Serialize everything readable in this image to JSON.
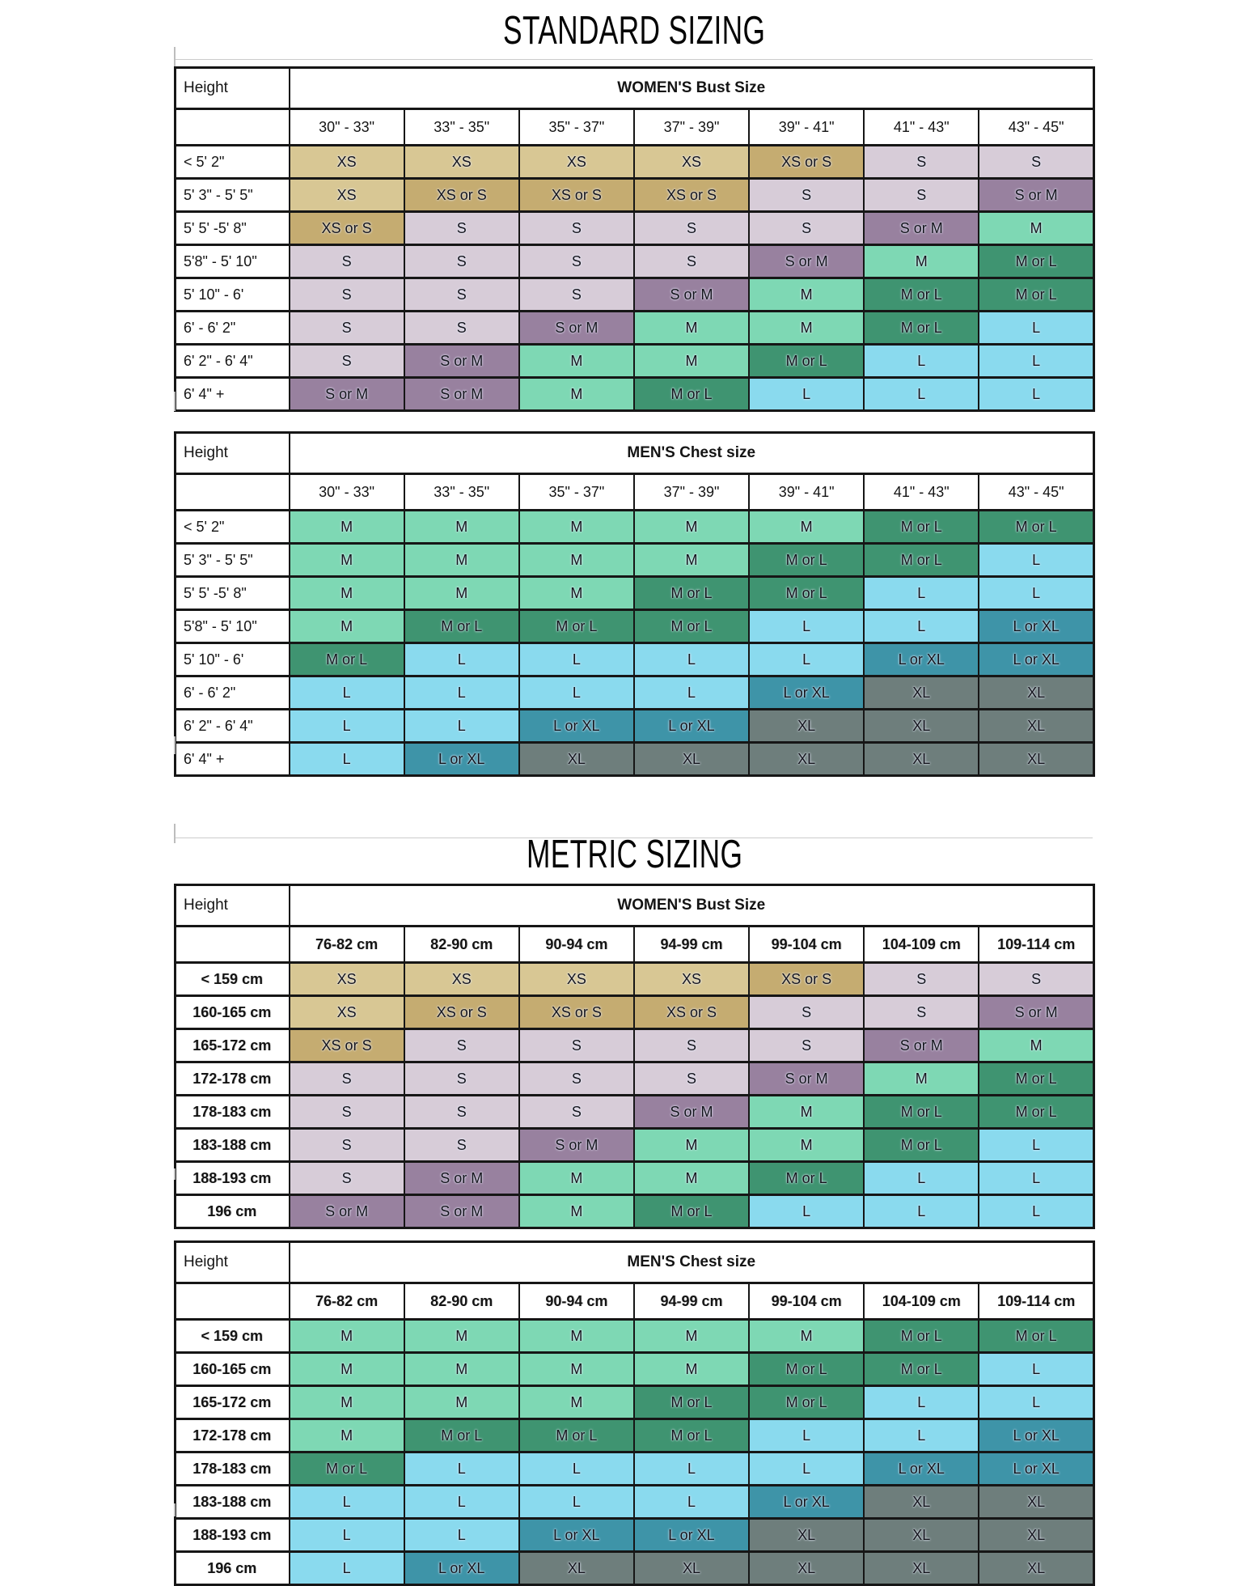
{
  "titles": {
    "standard": "STANDARD SIZING",
    "metric": "METRIC SIZING"
  },
  "size_colors": {
    "XS": "#d8c794",
    "XS or S": "#c5ac71",
    "S": "#d7ccd8",
    "S or M": "#98819f",
    "M": "#7ed8b4",
    "M or L": "#3f9471",
    "L": "#8adaee",
    "L or XL": "#3e94a8",
    "XL": "#6e7e7c"
  },
  "tables": [
    {
      "id": "standard-womens",
      "section": "standard-women",
      "corner_label": "Height",
      "group_header": "WOMEN'S Bust Size",
      "columns": [
        "30\" - 33\"",
        "33\" - 35\"",
        "35\" - 37\"",
        "37\" - 39\"",
        "39\" - 41\"",
        "41\" - 43\"",
        "43\" - 45\""
      ],
      "rows": [
        {
          "label": "< 5' 2\"",
          "cells": [
            "XS",
            "XS",
            "XS",
            "XS",
            "XS or S",
            "S",
            "S"
          ]
        },
        {
          "label": "5' 3\" - 5' 5\"",
          "cells": [
            "XS",
            "XS or S",
            "XS or S",
            "XS or S",
            "S",
            "S",
            "S or M"
          ]
        },
        {
          "label": "5' 5' -5' 8\"",
          "cells": [
            "XS or S",
            "S",
            "S",
            "S",
            "S",
            "S or M",
            "M"
          ]
        },
        {
          "label": "5'8\" - 5' 10\"",
          "cells": [
            "S",
            "S",
            "S",
            "S",
            "S or M",
            "M",
            "M or L"
          ]
        },
        {
          "label": "5' 10\" - 6'",
          "cells": [
            "S",
            "S",
            "S",
            "S or M",
            "M",
            "M or L",
            "M or L"
          ]
        },
        {
          "label": "6' - 6' 2\"",
          "cells": [
            "S",
            "S",
            "S or M",
            "M",
            "M",
            "M or L",
            "L"
          ]
        },
        {
          "label": "6' 2\" - 6' 4\"",
          "cells": [
            "S",
            "S or M",
            "M",
            "M",
            "M or L",
            "L",
            "L"
          ]
        },
        {
          "label": "6' 4\" +",
          "cells": [
            "S or M",
            "S or M",
            "M",
            "M or L",
            "L",
            "L",
            "L"
          ]
        }
      ]
    },
    {
      "id": "standard-mens",
      "section": "standard-men",
      "corner_label": "Height",
      "group_header": "MEN'S Chest size",
      "columns": [
        "30\" - 33\"",
        "33\" - 35\"",
        "35\" - 37\"",
        "37\" - 39\"",
        "39\" - 41\"",
        "41\" - 43\"",
        "43\" - 45\""
      ],
      "rows": [
        {
          "label": "< 5' 2\"",
          "cells": [
            "M",
            "M",
            "M",
            "M",
            "M",
            "M or L",
            "M or L"
          ]
        },
        {
          "label": "5' 3\" - 5' 5\"",
          "cells": [
            "M",
            "M",
            "M",
            "M",
            "M or L",
            "M or L",
            "L"
          ]
        },
        {
          "label": "5' 5' -5' 8\"",
          "cells": [
            "M",
            "M",
            "M",
            "M or L",
            "M or L",
            "L",
            "L"
          ]
        },
        {
          "label": "5'8\" - 5' 10\"",
          "cells": [
            "M",
            "M or L",
            "M or L",
            "M or L",
            "L",
            "L",
            "L or XL"
          ]
        },
        {
          "label": "5' 10\" - 6'",
          "cells": [
            "M or L",
            "L",
            "L",
            "L",
            "L",
            "L or XL",
            "L or XL"
          ]
        },
        {
          "label": "6' - 6' 2\"",
          "cells": [
            "L",
            "L",
            "L",
            "L",
            "L or XL",
            "XL",
            "XL"
          ]
        },
        {
          "label": "6' 2\" - 6' 4\"",
          "cells": [
            "L",
            "L",
            "L or XL",
            "L or XL",
            "XL",
            "XL",
            "XL"
          ]
        },
        {
          "label": "6' 4\" +",
          "cells": [
            "L",
            "L or XL",
            "XL",
            "XL",
            "XL",
            "XL",
            "XL"
          ]
        }
      ]
    },
    {
      "id": "metric-womens",
      "section": "metric-women",
      "corner_label": "Height",
      "group_header": "WOMEN'S Bust Size",
      "columns": [
        "76-82 cm",
        "82-90 cm",
        "90-94 cm",
        "94-99 cm",
        "99-104 cm",
        "104-109 cm",
        "109-114 cm"
      ],
      "rows": [
        {
          "label": "< 159 cm",
          "cells": [
            "XS",
            "XS",
            "XS",
            "XS",
            "XS or S",
            "S",
            "S"
          ]
        },
        {
          "label": "160-165 cm",
          "cells": [
            "XS",
            "XS or S",
            "XS or S",
            "XS or S",
            "S",
            "S",
            "S or M"
          ]
        },
        {
          "label": "165-172 cm",
          "cells": [
            "XS or S",
            "S",
            "S",
            "S",
            "S",
            "S or M",
            "M"
          ]
        },
        {
          "label": "172-178 cm",
          "cells": [
            "S",
            "S",
            "S",
            "S",
            "S or M",
            "M",
            "M or L"
          ]
        },
        {
          "label": "178-183 cm",
          "cells": [
            "S",
            "S",
            "S",
            "S or M",
            "M",
            "M or L",
            "M or L"
          ]
        },
        {
          "label": "183-188 cm",
          "cells": [
            "S",
            "S",
            "S or M",
            "M",
            "M",
            "M or L",
            "L"
          ]
        },
        {
          "label": "188-193 cm",
          "cells": [
            "S",
            "S or M",
            "M",
            "M",
            "M or L",
            "L",
            "L"
          ]
        },
        {
          "label": "196 cm",
          "cells": [
            "S or M",
            "S or M",
            "M",
            "M or L",
            "L",
            "L",
            "L"
          ]
        }
      ]
    },
    {
      "id": "metric-mens",
      "section": "metric-men",
      "corner_label": "Height",
      "group_header": "MEN'S Chest size",
      "columns": [
        "76-82 cm",
        "82-90 cm",
        "90-94 cm",
        "94-99 cm",
        "99-104 cm",
        "104-109 cm",
        "109-114 cm"
      ],
      "rows": [
        {
          "label": "< 159 cm",
          "cells": [
            "M",
            "M",
            "M",
            "M",
            "M",
            "M or L",
            "M or L"
          ]
        },
        {
          "label": "160-165 cm",
          "cells": [
            "M",
            "M",
            "M",
            "M",
            "M or L",
            "M or L",
            "L"
          ]
        },
        {
          "label": "165-172 cm",
          "cells": [
            "M",
            "M",
            "M",
            "M or L",
            "M or L",
            "L",
            "L"
          ]
        },
        {
          "label": "172-178 cm",
          "cells": [
            "M",
            "M or L",
            "M or L",
            "M or L",
            "L",
            "L",
            "L or XL"
          ]
        },
        {
          "label": "178-183 cm",
          "cells": [
            "M or L",
            "L",
            "L",
            "L",
            "L",
            "L or XL",
            "L or XL"
          ]
        },
        {
          "label": "183-188 cm",
          "cells": [
            "L",
            "L",
            "L",
            "L",
            "L or XL",
            "XL",
            "XL"
          ]
        },
        {
          "label": "188-193 cm",
          "cells": [
            "L",
            "L",
            "L or XL",
            "L or XL",
            "XL",
            "XL",
            "XL"
          ]
        },
        {
          "label": "196 cm",
          "cells": [
            "L",
            "L or XL",
            "XL",
            "XL",
            "XL",
            "XL",
            "XL"
          ]
        }
      ]
    }
  ]
}
